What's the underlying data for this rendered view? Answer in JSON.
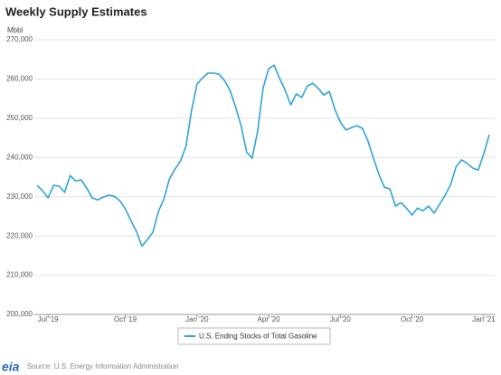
{
  "chart_data": {
    "type": "line",
    "title": "Weekly Supply Estimates",
    "y_axis_label": "Mbbl",
    "categories": [
      null,
      null,
      "Jul '19",
      null,
      null,
      null,
      null,
      null,
      null,
      null,
      null,
      null,
      null,
      null,
      null,
      null,
      "Oct '19",
      null,
      null,
      null,
      null,
      null,
      null,
      null,
      null,
      null,
      null,
      null,
      null,
      "Jan '20",
      null,
      null,
      null,
      null,
      null,
      null,
      null,
      null,
      null,
      null,
      null,
      null,
      "Apr '20",
      null,
      null,
      null,
      null,
      null,
      null,
      null,
      null,
      null,
      null,
      null,
      null,
      "Jul '20",
      null,
      null,
      null,
      null,
      null,
      null,
      null,
      null,
      null,
      null,
      null,
      null,
      "Oct '20",
      null,
      null,
      null,
      null,
      null,
      null,
      null,
      null,
      null,
      null,
      null,
      null,
      "Jan '21",
      null
    ],
    "series": [
      {
        "name": "U.S. Ending Stocks of Total Gasoline",
        "color": "#2ea3d8",
        "values": [
          232900,
          231500,
          229700,
          232900,
          232700,
          231100,
          235400,
          234000,
          234300,
          232200,
          229700,
          229200,
          229900,
          230400,
          230100,
          229000,
          226900,
          223900,
          221200,
          217400,
          219100,
          220900,
          226200,
          229400,
          234500,
          237000,
          239100,
          242800,
          251800,
          258700,
          260300,
          261500,
          261500,
          261200,
          259600,
          257100,
          252900,
          248100,
          241400,
          239800,
          246700,
          257800,
          262600,
          263500,
          260100,
          257100,
          253400,
          256200,
          255300,
          258200,
          258900,
          257600,
          255900,
          256800,
          252300,
          249000,
          247000,
          247600,
          248100,
          247400,
          244200,
          239800,
          235700,
          232400,
          232000,
          227600,
          228500,
          227100,
          225300,
          227100,
          226400,
          227600,
          225800,
          228100,
          230400,
          233100,
          237700,
          239400,
          238500,
          237300,
          236800,
          240900,
          245800
        ]
      }
    ],
    "ylim": [
      200000,
      270000
    ],
    "yticks": [
      {
        "value": 200000,
        "label": "200,000"
      },
      {
        "value": 210000,
        "label": "210,000"
      },
      {
        "value": 220000,
        "label": "220,000"
      },
      {
        "value": 230000,
        "label": "230,000"
      },
      {
        "value": 240000,
        "label": "240,000"
      },
      {
        "value": 250000,
        "label": "250,000"
      },
      {
        "value": 260000,
        "label": "260,000"
      },
      {
        "value": 270000,
        "label": "270,000"
      }
    ],
    "grid": true,
    "legend": "bottom",
    "source": "Source: U.S. Energy Information Administration",
    "logo": "eia"
  }
}
